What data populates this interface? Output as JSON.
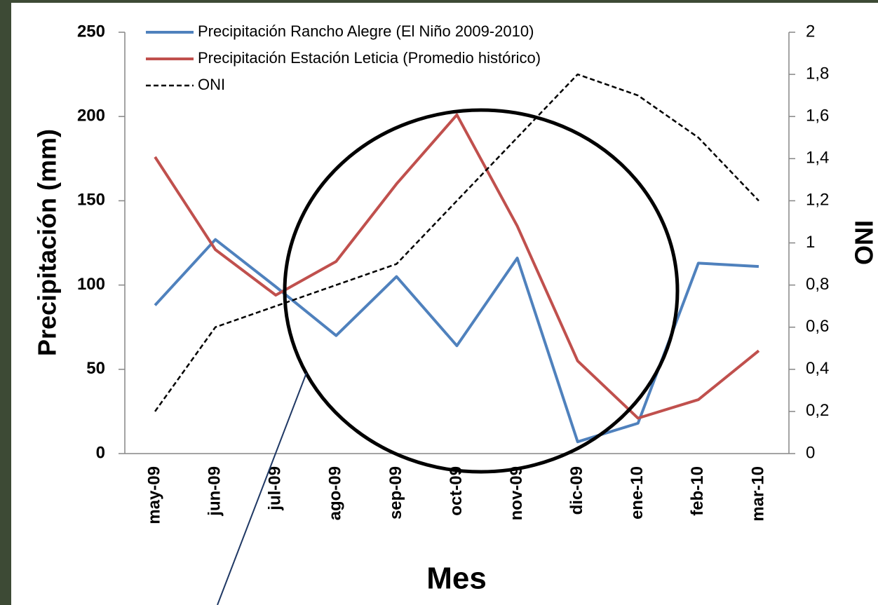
{
  "chart_data": {
    "type": "line",
    "x_label": "Mes",
    "y_label": "Precipitación (mm)",
    "y2_label": "ONI",
    "categories": [
      "may-09",
      "jun-09",
      "jul-09",
      "ago-09",
      "sep-09",
      "oct-09",
      "nov-09",
      "dic-09",
      "ene-10",
      "feb-10",
      "mar-10"
    ],
    "series": [
      {
        "name": "Precipitación Rancho Alegre (El Niño 2009-2010)",
        "color": "#4f81bd",
        "values": [
          88,
          127,
          99,
          70,
          105,
          64,
          116,
          7,
          18,
          113,
          111
        ]
      },
      {
        "name": "Precipitación Estación Leticia (Promedio histórico)",
        "color": "#c0504d",
        "values": [
          176,
          121,
          94,
          114,
          160,
          201,
          135,
          55,
          21,
          32,
          61
        ]
      },
      {
        "name": "ONI",
        "color": "#000000",
        "axis": "y2",
        "line_style": "dashed",
        "values": [
          0.2,
          0.6,
          0.7,
          0.8,
          0.9,
          1.2,
          1.5,
          1.8,
          1.7,
          1.5,
          1.2
        ]
      }
    ],
    "ylim": [
      0,
      250
    ],
    "yticks": [
      0,
      50,
      100,
      150,
      200,
      250
    ],
    "y2lim": [
      0,
      2
    ],
    "y2ticks": [
      0,
      {
        "value": 0.2,
        "label": "0,2"
      },
      {
        "value": 0.4,
        "label": "0,4"
      },
      {
        "value": 0.6,
        "label": "0,6"
      },
      {
        "value": 0.8,
        "label": "0,8"
      },
      1,
      {
        "value": 1.2,
        "label": "1,2"
      },
      {
        "value": 1.4,
        "label": "1,4"
      },
      {
        "value": 1.6,
        "label": "1,6"
      },
      {
        "value": 1.8,
        "label": "1,8"
      },
      2
    ],
    "legend": "upper left",
    "grid": false
  }
}
